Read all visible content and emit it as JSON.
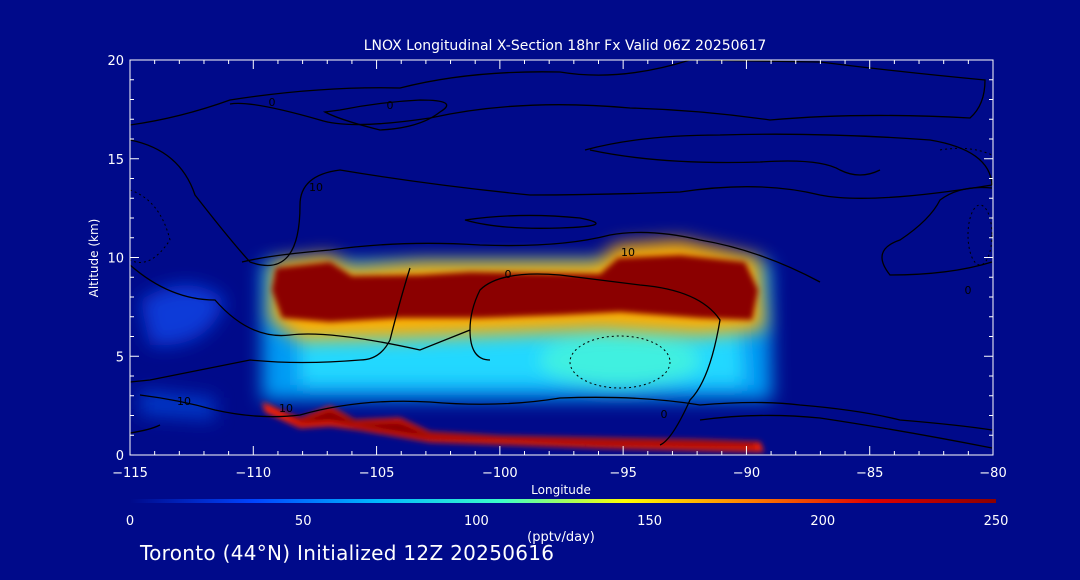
{
  "chart_data": {
    "type": "heatmap",
    "title": "LNOX Longitudinal X-Section 18hr  Fx Valid 06Z 20250617",
    "xlabel": "Longitude",
    "ylabel": "Altitude (km)",
    "xlim": [
      -115,
      -80
    ],
    "ylim": [
      0,
      20
    ],
    "x_ticks": [
      "-115",
      "-110",
      "-105",
      "-100",
      "-95",
      "-90",
      "-85",
      "-80"
    ],
    "y_ticks": [
      "0",
      "5",
      "10",
      "15",
      "20"
    ],
    "background_color": "#000a8a",
    "colorbar": {
      "ticks": [
        "0",
        "50",
        "100",
        "150",
        "200",
        "250"
      ],
      "min": 0,
      "max": 250,
      "units": "(pptv/day)",
      "colors": [
        "#000a8a",
        "#0044ff",
        "#00b8ff",
        "#3cffc8",
        "#ffff00",
        "#ff8000",
        "#e00000",
        "#8b0000"
      ]
    },
    "field_regions": [
      {
        "name": "upper band",
        "lon": [
          -109.7,
          -89.4
        ],
        "alt": [
          6.3,
          9.8
        ],
        "value": 250
      },
      {
        "name": "mid layer",
        "lon": [
          -109.5,
          -89.5
        ],
        "alt": [
          3.3,
          6.3
        ],
        "value": 80
      },
      {
        "name": "near-surface band",
        "lon": [
          -109.3,
          -89.2
        ],
        "alt": [
          0.3,
          2.6
        ],
        "value": 250
      }
    ],
    "contour_labels": [
      "0",
      "0",
      "0",
      "0",
      "0",
      "10",
      "10",
      "10",
      "10"
    ]
  },
  "footer": "Toronto (44°N) Initialized 12Z 20250616"
}
